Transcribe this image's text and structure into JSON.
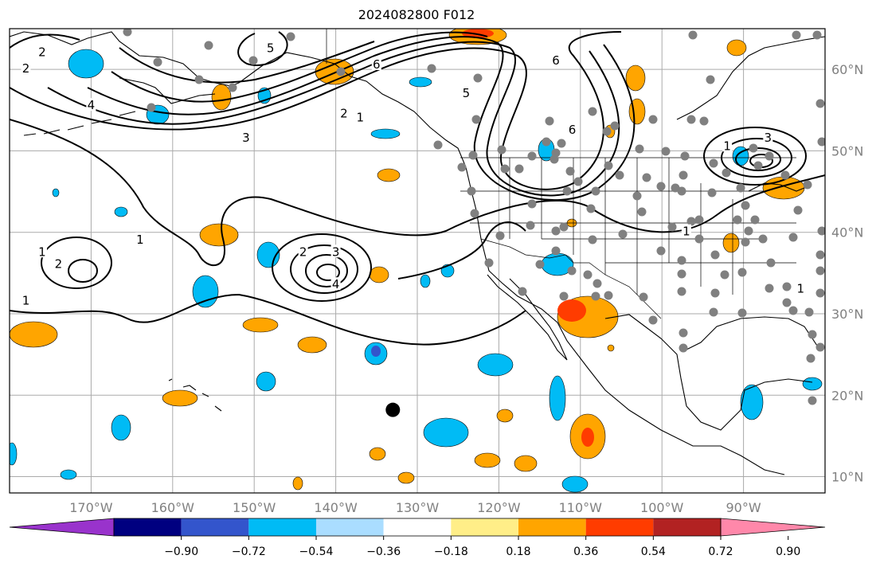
{
  "title": "2024082800 F012",
  "map": {
    "lon_range": [
      -180,
      -80
    ],
    "lat_range": [
      8,
      65
    ],
    "lat_labels": [
      "10°N",
      "20°N",
      "30°N",
      "40°N",
      "50°N",
      "60°N"
    ],
    "lat_values": [
      10,
      20,
      30,
      40,
      50,
      60
    ],
    "lon_labels": [
      "170°W",
      "160°W",
      "150°W",
      "140°W",
      "130°W",
      "120°W",
      "110°W",
      "100°W",
      "90°W"
    ],
    "lon_values": [
      -170,
      -160,
      -150,
      -140,
      -130,
      -120,
      -110,
      -100,
      -90
    ],
    "grid": true,
    "contour_labels": [
      {
        "text": "2",
        "lon": -178,
        "lat": 60
      },
      {
        "text": "2",
        "lon": -176,
        "lat": 62
      },
      {
        "text": "4",
        "lon": -170,
        "lat": 55.5
      },
      {
        "text": "3",
        "lon": -151,
        "lat": 51.5
      },
      {
        "text": "5",
        "lon": -148,
        "lat": 62.5
      },
      {
        "text": "6",
        "lon": -135,
        "lat": 60.5
      },
      {
        "text": "2",
        "lon": -139,
        "lat": 54.5
      },
      {
        "text": "1",
        "lon": -137,
        "lat": 54
      },
      {
        "text": "5",
        "lon": -124,
        "lat": 57
      },
      {
        "text": "6",
        "lon": -113,
        "lat": 61
      },
      {
        "text": "6",
        "lon": -111,
        "lat": 52.5
      },
      {
        "text": "3",
        "lon": -87,
        "lat": 51.5
      },
      {
        "text": "1",
        "lon": -92,
        "lat": 50.5
      },
      {
        "text": "1",
        "lon": -97,
        "lat": 40
      },
      {
        "text": "1",
        "lon": -83,
        "lat": 33
      },
      {
        "text": "3",
        "lon": -140,
        "lat": 37.5
      },
      {
        "text": "2",
        "lon": -144,
        "lat": 37.5
      },
      {
        "text": "4",
        "lon": -140,
        "lat": 33.5
      },
      {
        "text": "1",
        "lon": -164,
        "lat": 39
      },
      {
        "text": "1",
        "lon": -176,
        "lat": 37.5
      },
      {
        "text": "2",
        "lon": -174,
        "lat": 36
      },
      {
        "text": "1",
        "lon": -178,
        "lat": 31.5
      }
    ],
    "big_marker": {
      "lon": -133,
      "lat": 18.2
    }
  },
  "colorbar": {
    "colors": [
      "#9933cc",
      "#000080",
      "#3355cc",
      "#00bbf5",
      "#aaddff",
      "#ffffff",
      "#ffee88",
      "#ffa500",
      "#ff3c00",
      "#b22222",
      "#ff88aa"
    ],
    "tick_labels": [
      "−0.90",
      "−0.72",
      "−0.54",
      "−0.36",
      "−0.18",
      "0.18",
      "0.36",
      "0.54",
      "0.72",
      "0.90"
    ]
  }
}
